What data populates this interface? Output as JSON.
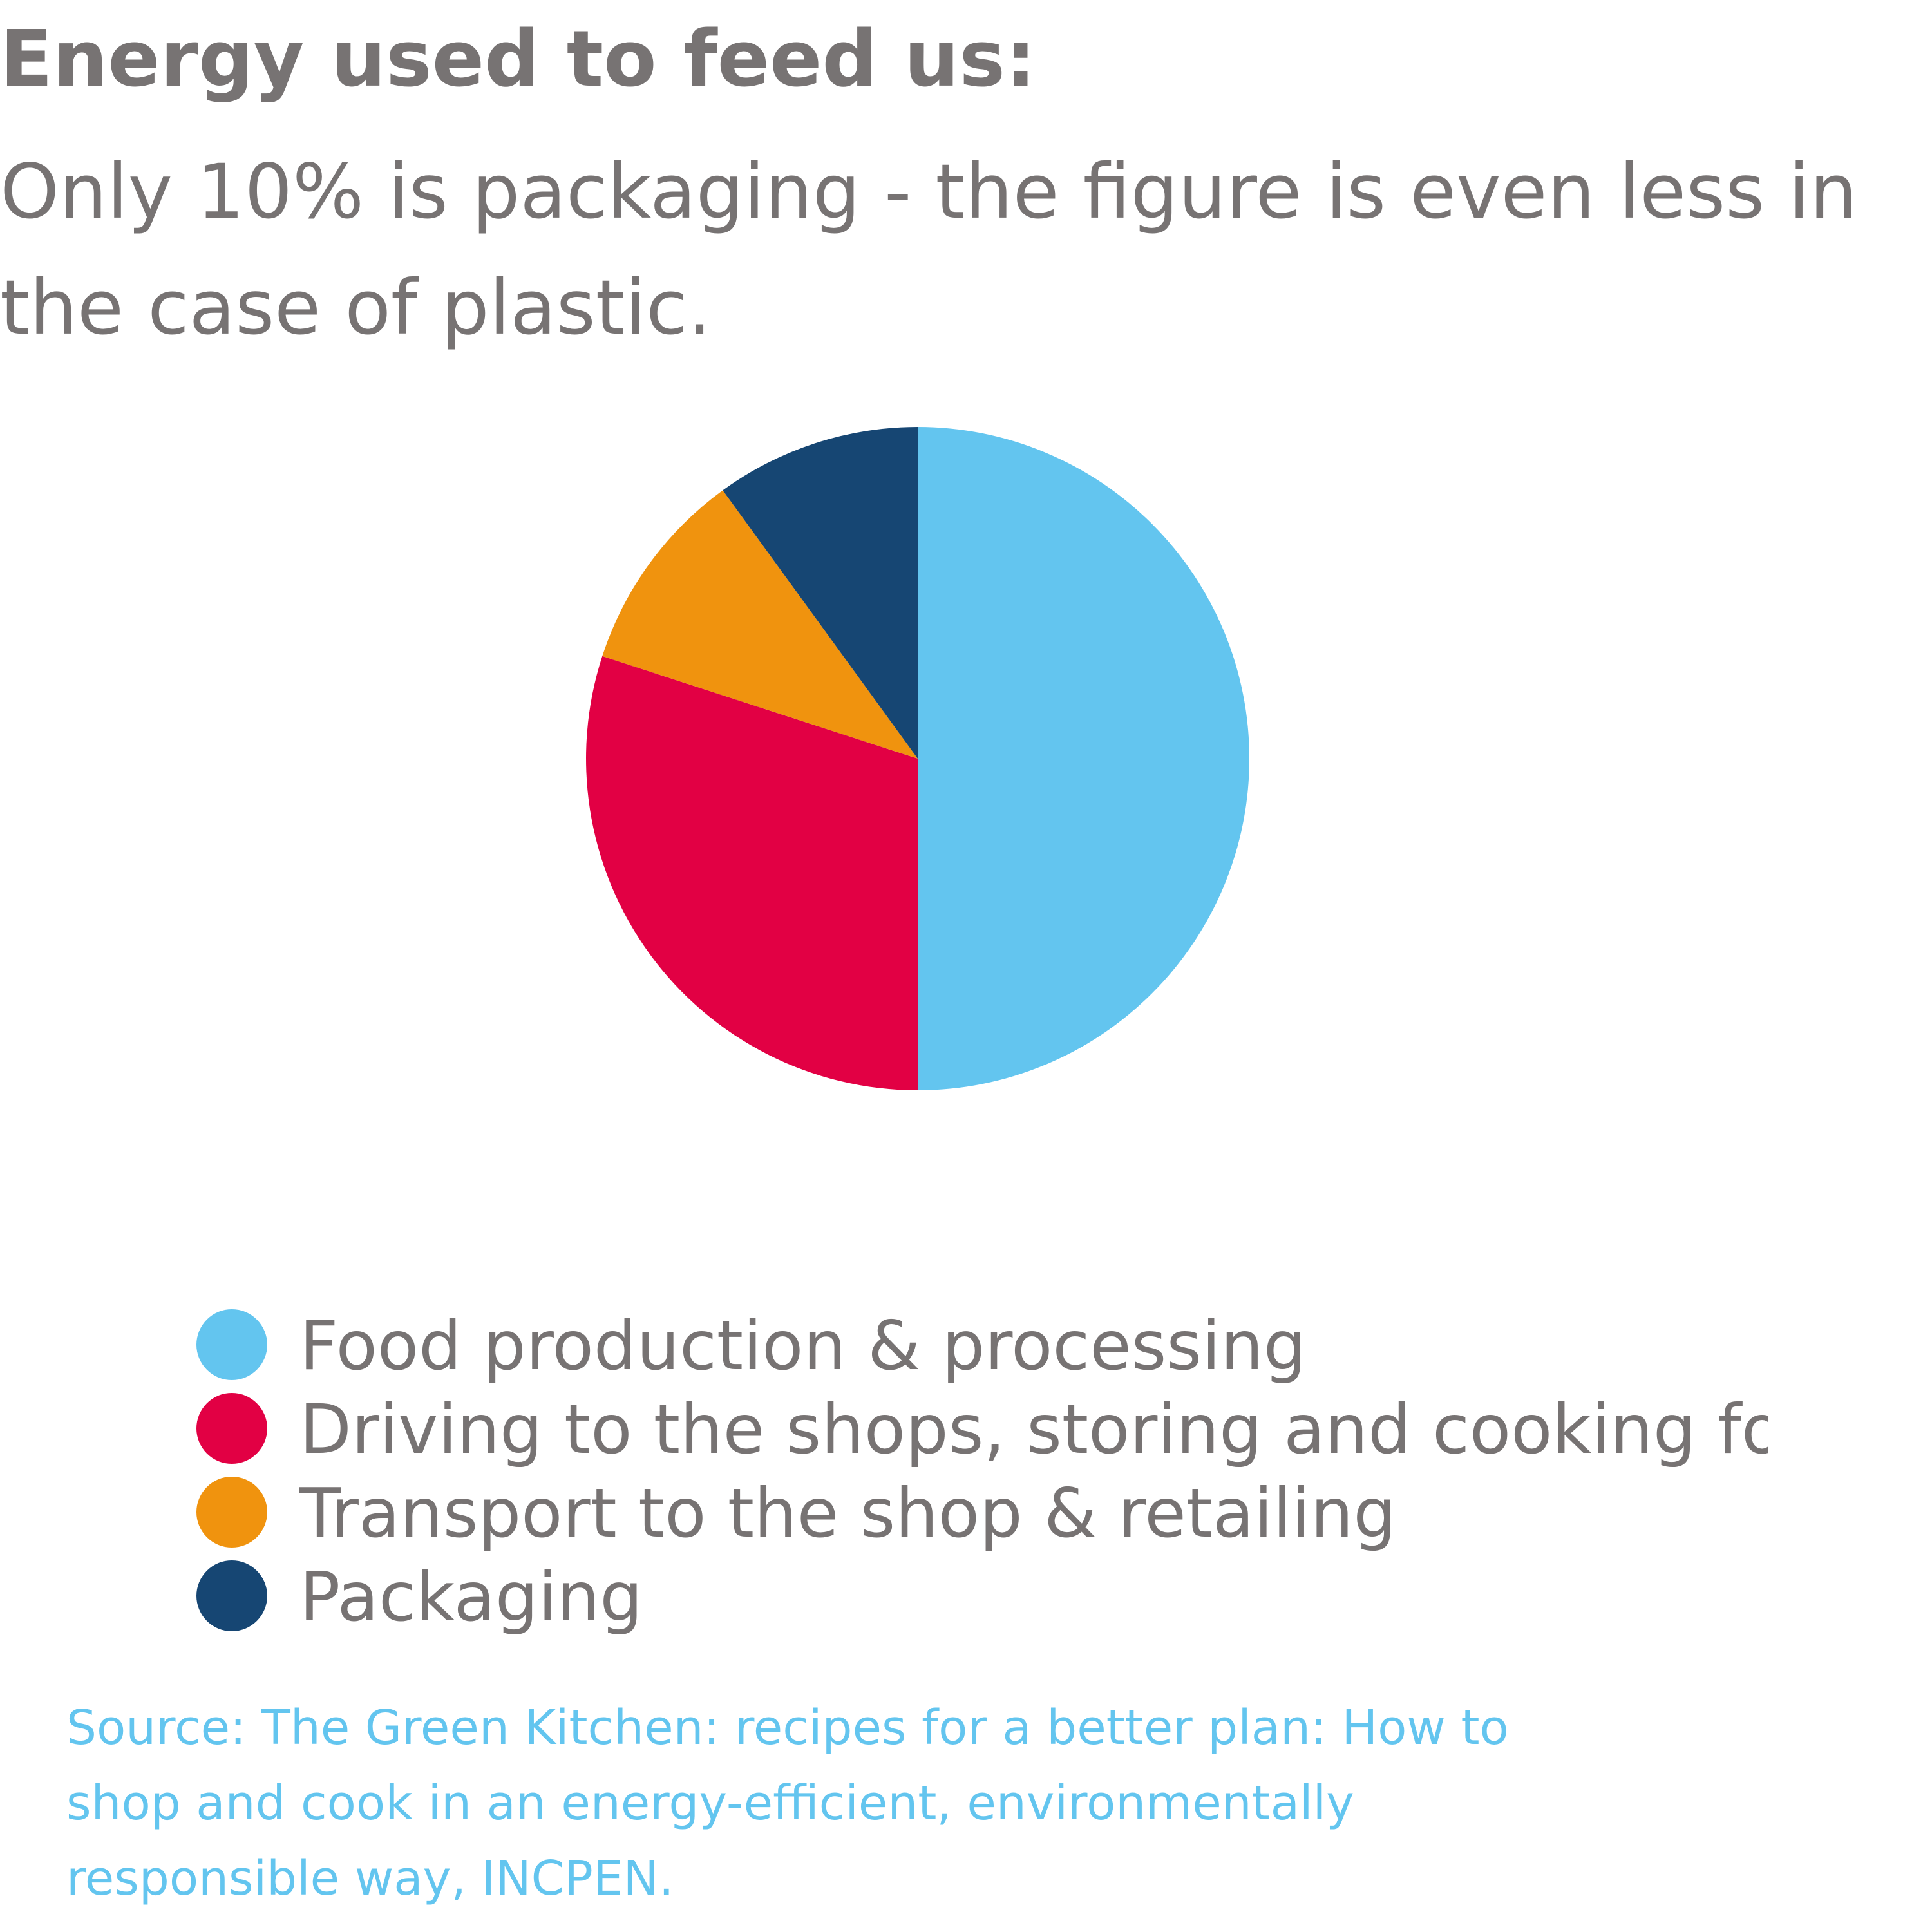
{
  "header": {
    "title": "Energy used to feed us:",
    "subtitle": "Only 10% is packaging - the figure is even less in the case of plastic."
  },
  "chart_data": {
    "type": "pie",
    "start_angle_deg": 0,
    "direction": "clockwise",
    "slices": [
      {
        "label": "Food production & processing",
        "value": 50,
        "color": "#63c5ef"
      },
      {
        "label": "Driving to the shops, storing and cooking foc",
        "value": 30,
        "color": "#e20044"
      },
      {
        "label": "Transport to the shop & retailing",
        "value": 10,
        "color": "#f0930e"
      },
      {
        "label": "Packaging",
        "value": 10,
        "color": "#164673"
      }
    ],
    "legend_position": "bottom"
  },
  "source": {
    "text": "Source: The Green Kitchen: recipes for a better plan: How to shop and cook in an energy-efficient, environmentally responsible way, INCPEN."
  },
  "colors": {
    "text": "#777373",
    "source_link": "#63c5ef"
  }
}
